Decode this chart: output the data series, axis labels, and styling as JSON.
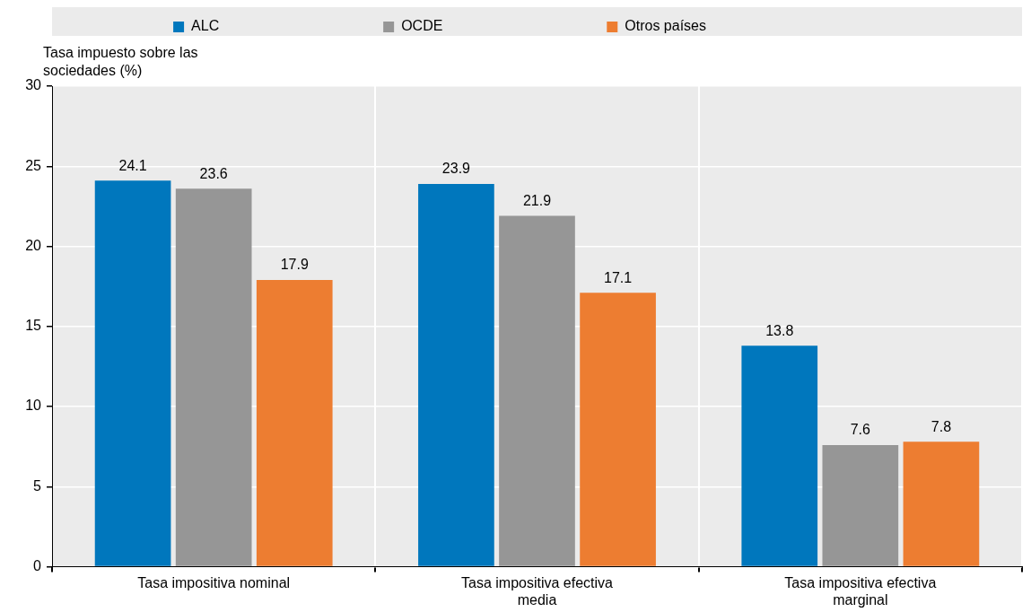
{
  "chart_data": {
    "type": "bar",
    "ylabel": "Tasa impuesto sobre las sociedades (%)",
    "categories": [
      "Tasa impositiva nominal",
      "Tasa impositiva efectiva media",
      "Tasa impositiva efectiva marginal"
    ],
    "series": [
      {
        "name": "ALC",
        "color": "#0077bd",
        "values": [
          24.1,
          23.9,
          13.8
        ]
      },
      {
        "name": "OCDE",
        "color": "#969696",
        "values": [
          23.6,
          21.9,
          7.6
        ]
      },
      {
        "name": "Otros países",
        "color": "#ed7d31",
        "values": [
          17.9,
          17.1,
          7.8
        ]
      }
    ],
    "ylim": [
      0,
      30
    ],
    "yticks": [
      0,
      5,
      10,
      15,
      20,
      25,
      30
    ],
    "grid": true,
    "legend": "top",
    "data_labels": true
  }
}
